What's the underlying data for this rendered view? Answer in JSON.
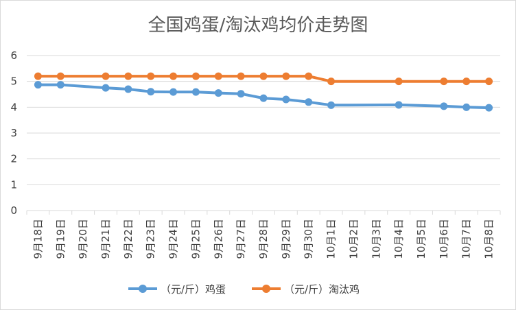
{
  "chart_data": {
    "type": "line",
    "title": "全国鸡蛋/淘汰鸡均价走势图",
    "categories": [
      "9月18日",
      "9月19日",
      "9月20日",
      "9月21日",
      "9月22日",
      "9月23日",
      "9月24日",
      "9月25日",
      "9月26日",
      "9月27日",
      "9月28日",
      "9月29日",
      "9月30日",
      "10月1日",
      "10月2日",
      "10月3日",
      "10月4日",
      "10月5日",
      "10月6日",
      "10月7日",
      "10月8日"
    ],
    "series": [
      {
        "name": "（元/斤）鸡蛋",
        "color": "#5b9bd5",
        "values": [
          4.87,
          4.87,
          null,
          4.75,
          4.7,
          4.6,
          4.59,
          4.59,
          4.55,
          4.52,
          4.35,
          4.3,
          4.2,
          4.08,
          null,
          null,
          4.09,
          null,
          4.04,
          4.0,
          3.98
        ]
      },
      {
        "name": "（元/斤）淘汰鸡",
        "color": "#ed7d31",
        "values": [
          5.2,
          5.2,
          null,
          5.2,
          5.2,
          5.2,
          5.2,
          5.2,
          5.2,
          5.2,
          5.2,
          5.2,
          5.2,
          5.0,
          null,
          null,
          5.0,
          null,
          5.0,
          5.0,
          5.0
        ]
      }
    ],
    "y_ticks": [
      "0",
      "1",
      "2",
      "3",
      "4",
      "5",
      "6"
    ],
    "ylim": [
      0,
      6
    ],
    "grid": "horizontal",
    "legend_position": "bottom"
  }
}
